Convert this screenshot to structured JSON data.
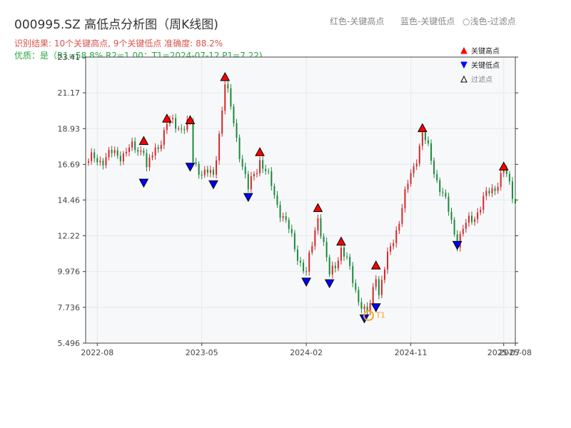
{
  "title": "000995.SZ 高低点分析图（周K线图)",
  "header_legend": {
    "red": "红色-关键高点",
    "blue": "蓝色-关键低点",
    "light": "○浅色-过滤点"
  },
  "result_line": "识别结果: 10个关键高点, 9个关键低点   准确度: 88.2%",
  "quality_line": "优质：是（R1=58.8%  R2=1.00；T1=2024-07-12 P1=7.22)",
  "chart_data": {
    "type": "candlestick",
    "ylim": [
      5.496,
      23.41
    ],
    "yticks": [
      5.496,
      7.736,
      9.976,
      12.22,
      14.46,
      16.69,
      18.93,
      21.17,
      23.41
    ],
    "ytick_labels": [
      "5.496",
      "7.736",
      "9.976",
      "12.22",
      "14.46",
      "16.69",
      "18.93",
      "21.17",
      "23.41"
    ],
    "x_start": "2022-07",
    "x_end": "2025-08",
    "xticks": [
      "2022-08",
      "2023-05",
      "2024-02",
      "2024-11",
      "2025-07",
      "2025-08"
    ],
    "grid": true,
    "legend": {
      "placement": "top-right",
      "entries": [
        {
          "label": "关键高点",
          "marker": "triangle-up",
          "color": "#ff0000"
        },
        {
          "label": "关键低点",
          "marker": "triangle-down",
          "color": "#0000ff"
        },
        {
          "label": "过滤点",
          "marker": "triangle-up-outline",
          "color": "#888888"
        }
      ]
    },
    "key_highs": [
      {
        "date": "2022-12",
        "price": 17.8
      },
      {
        "date": "2023-02",
        "price": 19.2
      },
      {
        "date": "2023-04",
        "price": 19.1
      },
      {
        "date": "2023-07",
        "price": 21.8
      },
      {
        "date": "2023-10",
        "price": 17.1
      },
      {
        "date": "2024-03",
        "price": 13.6
      },
      {
        "date": "2024-05",
        "price": 11.5
      },
      {
        "date": "2024-08",
        "price": 10.0
      },
      {
        "date": "2024-12",
        "price": 18.6
      },
      {
        "date": "2025-07",
        "price": 16.2
      }
    ],
    "key_lows": [
      {
        "date": "2022-12",
        "price": 15.9
      },
      {
        "date": "2023-04",
        "price": 16.9
      },
      {
        "date": "2023-06",
        "price": 15.8
      },
      {
        "date": "2023-09",
        "price": 15.0
      },
      {
        "date": "2024-02",
        "price": 9.7
      },
      {
        "date": "2024-04",
        "price": 9.6
      },
      {
        "date": "2024-07",
        "price": 7.4
      },
      {
        "date": "2024-08",
        "price": 8.1
      },
      {
        "date": "2025-03",
        "price": 12.0
      }
    ],
    "annotation": {
      "label": "T1",
      "date": "2024-07-12",
      "price": 7.22,
      "color": "#f5a623"
    },
    "colors": {
      "up": "#d62728",
      "down": "#1a8a3a",
      "high": "#ff0000",
      "low": "#0000ff",
      "plot_bg": "#f7f8fa"
    }
  }
}
